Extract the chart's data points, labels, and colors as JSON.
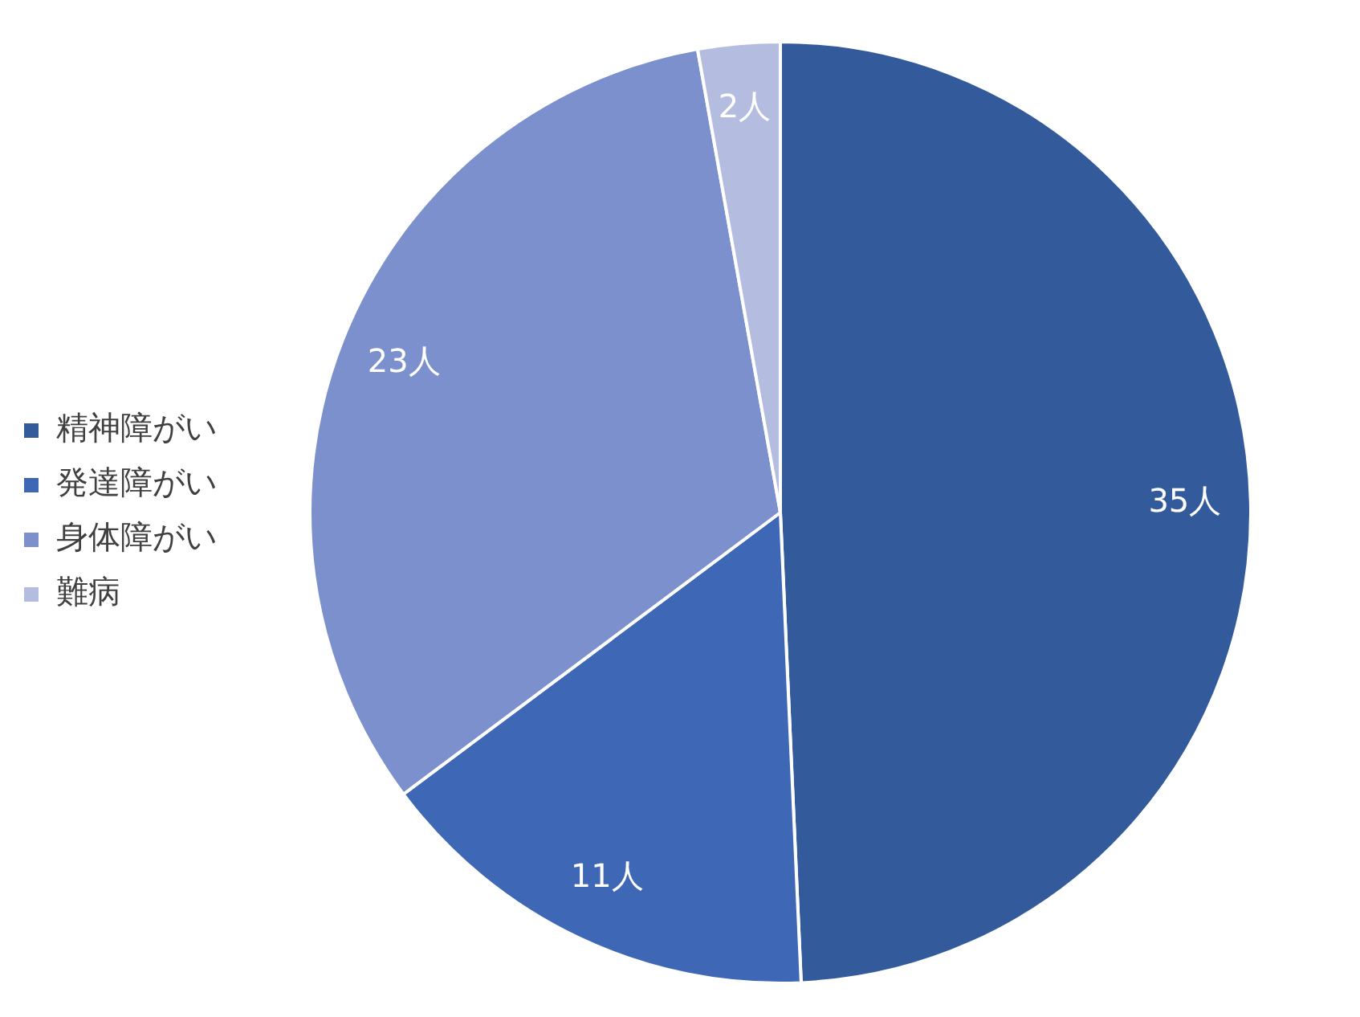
{
  "chart_data": {
    "type": "pie",
    "categories": [
      "精神障がい",
      "発達障がい",
      "身体障がい",
      "難病"
    ],
    "values": [
      35,
      11,
      23,
      2
    ],
    "colors": [
      "#335a9a",
      "#3e68b5",
      "#7b90cc",
      "#b4bde0"
    ],
    "value_labels": [
      "35人",
      "11人",
      "23人",
      "2人"
    ],
    "legend": "left"
  }
}
